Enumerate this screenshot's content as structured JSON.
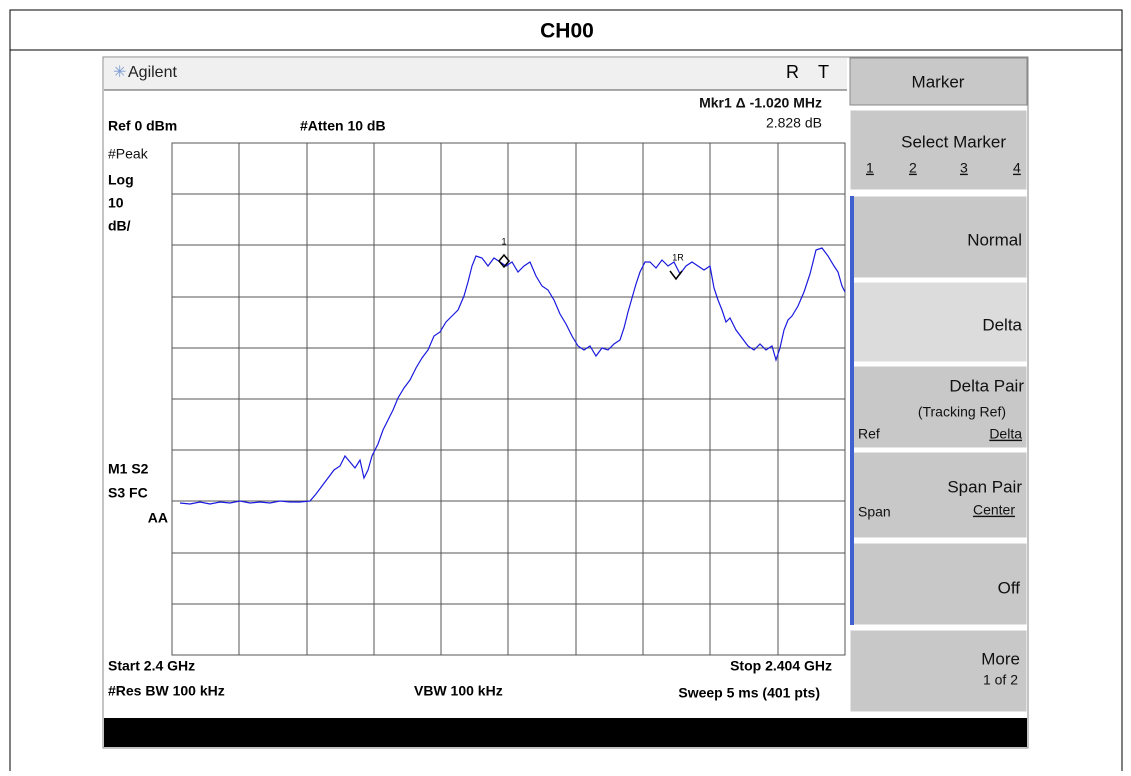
{
  "header": {
    "title": "CH00"
  },
  "topbar": {
    "brand": "Agilent",
    "indicators": [
      "R",
      "T"
    ]
  },
  "annotations": {
    "marker_readout": "Mkr1 Δ  -1.020 MHz",
    "marker_value": "2.828 dB",
    "ref_level": "Ref 0 dBm",
    "attenuation": "#Atten 10 dB",
    "left_labels": [
      "#Peak",
      "Log",
      "10",
      "dB/"
    ],
    "status_labels": [
      "M1  S2",
      "S3  FC",
      "AA"
    ],
    "start": "Start 2.4 GHz",
    "stop": "Stop 2.404 GHz",
    "res_bw": "#Res BW 100 kHz",
    "vbw": "VBW 100 kHz",
    "sweep": "Sweep 5 ms (401 pts)",
    "marker_labels": [
      "1",
      "1R"
    ]
  },
  "softkeys": {
    "menu_title": "Marker",
    "select_marker": {
      "label": "Select Marker",
      "options": [
        "1",
        "2",
        "3",
        "4"
      ]
    },
    "normal": "Normal",
    "delta": "Delta",
    "delta_pair": {
      "label": "Delta Pair",
      "sub": "(Tracking Ref)",
      "left": "Ref",
      "right": "Delta"
    },
    "span_pair": {
      "label": "Span Pair",
      "left": "Span",
      "right": "Center"
    },
    "off": "Off",
    "more": {
      "label": "More",
      "sub": "1 of 2"
    }
  }
}
